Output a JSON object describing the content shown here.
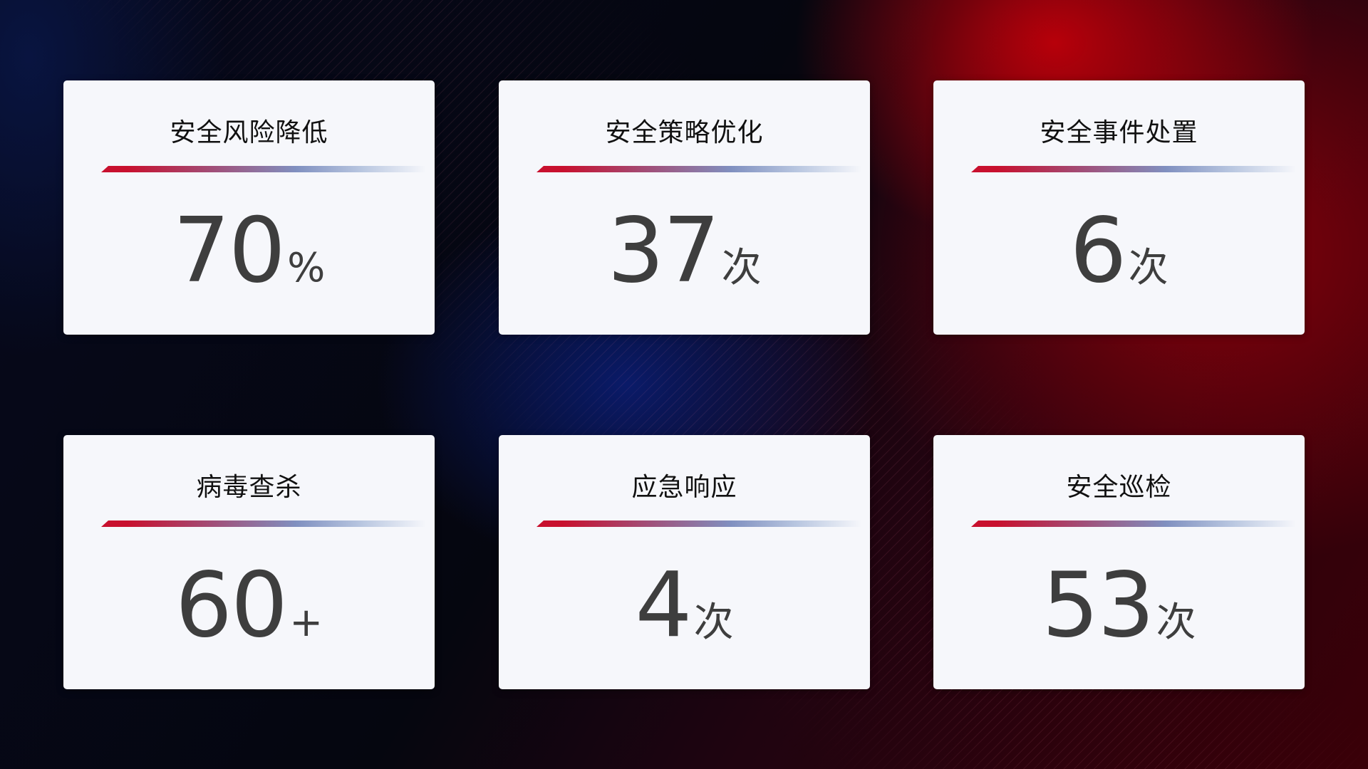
{
  "cards": [
    {
      "title": "安全风险降低",
      "value": "70",
      "unit": "%"
    },
    {
      "title": "安全策略优化",
      "value": "37",
      "unit": "次"
    },
    {
      "title": "安全事件处置",
      "value": "6",
      "unit": "次"
    },
    {
      "title": "病毒查杀",
      "value": "60",
      "unit": "+"
    },
    {
      "title": "应急响应",
      "value": "4",
      "unit": "次"
    },
    {
      "title": "安全巡检",
      "value": "53",
      "unit": "次"
    }
  ],
  "colors": {
    "accent_red": "#c8102e",
    "accent_blue": "#8090c0",
    "card_bg": "#f6f7fb",
    "value_text": "#3e3e3e"
  }
}
